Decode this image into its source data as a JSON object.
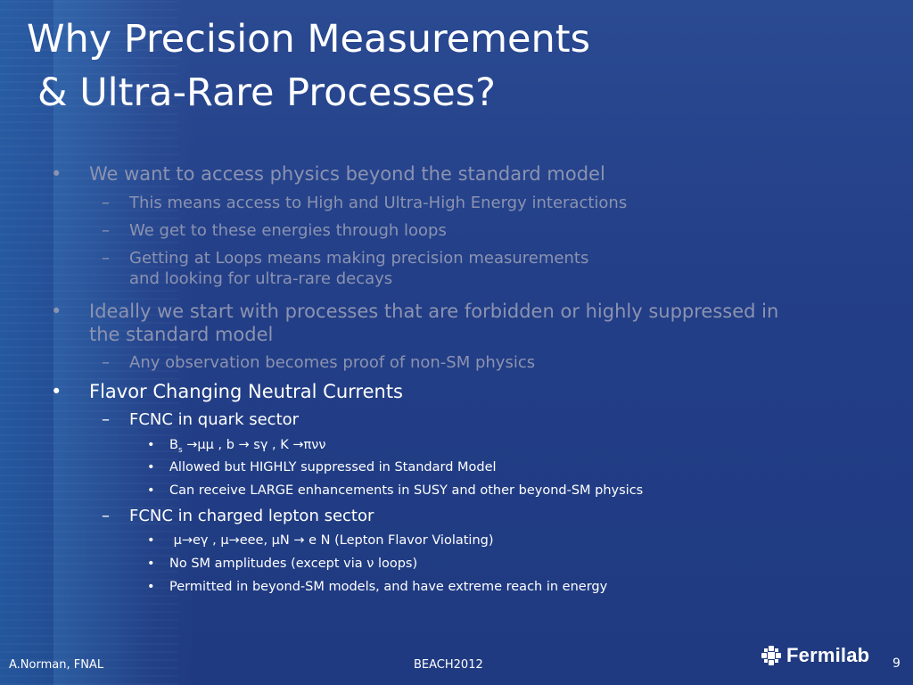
{
  "title": {
    "line1": "Why Precision Measurements",
    "line2": "& Ultra-Rare Processes?"
  },
  "bullet_glyph": "•",
  "dash_glyph": "–",
  "items": [
    {
      "level": 1,
      "text": "We want to access physics beyond the standard model"
    },
    {
      "level": 2,
      "text": "This means access to High and Ultra-High Energy interactions"
    },
    {
      "level": 2,
      "text": "We get to these energies through loops"
    },
    {
      "level": 2,
      "text": "Getting at Loops means making precision measurements",
      "text2": "and looking for ultra-rare decays"
    },
    {
      "level": 1,
      "text": "Ideally we start with processes that are forbidden or highly suppressed in",
      "text2": "the standard model"
    },
    {
      "level": 2,
      "text": "Any observation becomes proof of non-SM physics"
    },
    {
      "level": 1,
      "text": "Flavor Changing Neutral Currents"
    },
    {
      "level": 2,
      "text": "FCNC in quark sector"
    },
    {
      "level": 3,
      "text_pre": "B",
      "text_sub": "s",
      "text_post": " →μμ  , b → sγ , K →πνν"
    },
    {
      "level": 3,
      "text": "Allowed but HIGHLY suppressed in Standard Model"
    },
    {
      "level": 3,
      "text": "Can receive LARGE enhancements in SUSY and other beyond-SM physics"
    },
    {
      "level": 2,
      "text": "FCNC in charged lepton sector"
    },
    {
      "level": 3,
      "text": " μ→eγ , μ→eee, μN → e N (Lepton Flavor Violating)"
    },
    {
      "level": 3,
      "text": "No SM amplitudes (except via ν loops)"
    },
    {
      "level": 3,
      "text": "Permitted in beyond-SM models, and have extreme reach in energy"
    }
  ],
  "footer": {
    "author": "A.Norman, FNAL",
    "conference": "BEACH2012",
    "page": "9",
    "logo_text": "Fermilab"
  },
  "colors": {
    "background": "#23418a",
    "dimmed_text": "#8c93b0",
    "highlight_text": "#ffffff"
  }
}
